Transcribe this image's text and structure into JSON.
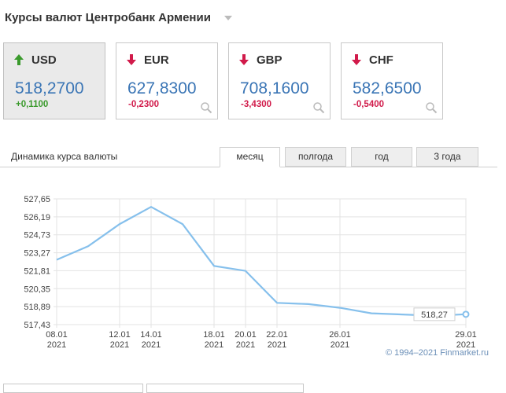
{
  "page": {
    "title": "Курсы валют Центробанк Армении"
  },
  "currencies": [
    {
      "code": "USD",
      "rate": "518,2700",
      "change": "+0,1100",
      "direction": "up"
    },
    {
      "code": "EUR",
      "rate": "627,8300",
      "change": "-0,2300",
      "direction": "down"
    },
    {
      "code": "GBP",
      "rate": "708,1600",
      "change": "-3,4300",
      "direction": "down"
    },
    {
      "code": "CHF",
      "rate": "582,6500",
      "change": "-0,5400",
      "direction": "down"
    }
  ],
  "dynamics": {
    "label": "Динамика курса валюты",
    "tabs": [
      "месяц",
      "полгода",
      "год",
      "3 года"
    ],
    "active_tab": "месяц"
  },
  "colors": {
    "line": "#86c0ec",
    "up": "#3a9a2c",
    "down": "#d11a4a",
    "rate": "#3a75b5"
  },
  "chart_data": {
    "type": "line",
    "x_labels": [
      "08.01\n2021",
      "12.01\n2021",
      "14.01\n2021",
      "18.01\n2021",
      "20.01\n2021",
      "22.01\n2021",
      "26.01\n2021",
      "29.01\n2021"
    ],
    "x": [
      0,
      4,
      6,
      10,
      12,
      14,
      18,
      21
    ],
    "y_ticks": [
      "527,65",
      "526,19",
      "524,73",
      "523,27",
      "521,81",
      "520,35",
      "518,89",
      "517,43"
    ],
    "y_tick_values": [
      527.65,
      526.19,
      524.73,
      523.27,
      521.81,
      520.35,
      518.89,
      517.43
    ],
    "ylim": [
      517.43,
      527.65
    ],
    "points": [
      {
        "x": 0,
        "y": 522.7
      },
      {
        "x": 2,
        "y": 523.8
      },
      {
        "x": 4,
        "y": 525.6
      },
      {
        "x": 6,
        "y": 527.0
      },
      {
        "x": 8,
        "y": 525.6
      },
      {
        "x": 10,
        "y": 522.2
      },
      {
        "x": 12,
        "y": 521.8
      },
      {
        "x": 14,
        "y": 519.2
      },
      {
        "x": 16,
        "y": 519.1
      },
      {
        "x": 18,
        "y": 518.8
      },
      {
        "x": 20,
        "y": 518.35
      },
      {
        "x": 24,
        "y": 518.15
      },
      {
        "x": 26,
        "y": 518.27
      }
    ],
    "last_value_label": "518,27",
    "copyright": "© 1994–2021 Finmarket.ru"
  }
}
